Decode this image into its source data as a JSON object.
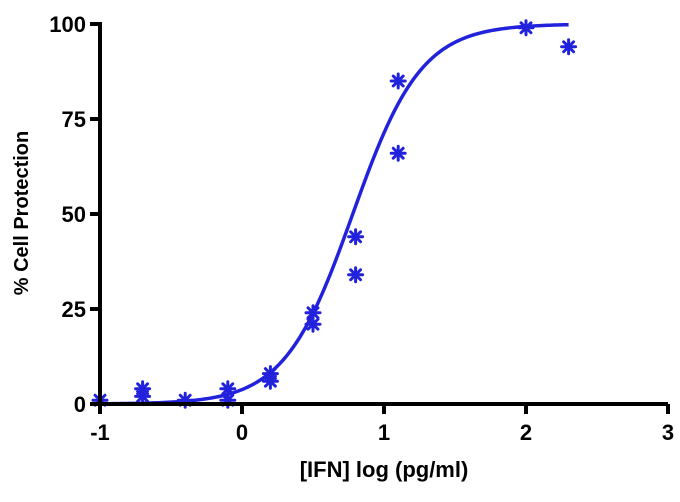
{
  "chart_data": {
    "type": "scatter",
    "title": "",
    "xlabel": "[IFN] log (pg/ml)",
    "ylabel": "% Cell Protection",
    "xlim": [
      -1,
      3
    ],
    "ylim": [
      0,
      100
    ],
    "xticks": [
      "-1",
      "0",
      "1",
      "2",
      "3"
    ],
    "yticks": [
      "0",
      "25",
      "50",
      "75",
      "100"
    ],
    "grid": false,
    "legend": "none",
    "colors": {
      "series": "#2222dd",
      "axis": "#000000"
    },
    "marker": "asterisk",
    "series": [
      {
        "points": [
          {
            "x": -1.0,
            "y": 1
          },
          {
            "x": -0.7,
            "y": 4
          },
          {
            "x": -0.7,
            "y": 2
          },
          {
            "x": -0.4,
            "y": 1
          },
          {
            "x": -0.1,
            "y": 4
          },
          {
            "x": -0.1,
            "y": 1
          },
          {
            "x": 0.2,
            "y": 8
          },
          {
            "x": 0.2,
            "y": 6
          },
          {
            "x": 0.5,
            "y": 24
          },
          {
            "x": 0.5,
            "y": 21
          },
          {
            "x": 0.8,
            "y": 44
          },
          {
            "x": 0.8,
            "y": 34
          },
          {
            "x": 1.1,
            "y": 85
          },
          {
            "x": 1.1,
            "y": 66
          },
          {
            "x": 2.0,
            "y": 99
          },
          {
            "x": 2.3,
            "y": 94
          }
        ]
      }
    ],
    "fit": {
      "type": "sigmoid",
      "bottom": 0,
      "top": 100,
      "logEC50": 0.78,
      "hill": 1.8,
      "x_range": [
        -1.0,
        2.3
      ]
    }
  }
}
